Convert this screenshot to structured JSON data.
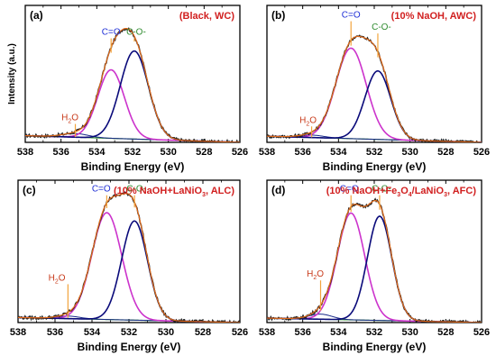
{
  "colors": {
    "raw_data": "#222222",
    "envelope": "#e06a1a",
    "co_peak": "#0a0a7a",
    "c_double_o_peak": "#cc33cc",
    "h2o_peak": "#1a2a8a",
    "baseline": "#2e8b2e",
    "c_double_o_label": "#1f2fd6",
    "co_label": "#2e8b2e",
    "h2o_label": "#c83a1a",
    "marker_line": "#f2a43c",
    "sample_label": "#d11f1f"
  },
  "chart_data": [
    {
      "type": "line",
      "panel_label": "(a)",
      "sample_label": "(Black, WC)",
      "xlabel": "Binding Energy (eV)",
      "ylabel": "Intensity (a.u.)",
      "xlim": [
        538,
        526
      ],
      "ylim": [
        0,
        1.12
      ],
      "x_ticks": [
        538,
        536,
        534,
        532,
        530,
        528,
        526
      ],
      "x_tick_labels": [
        "538",
        "536",
        "534",
        "532",
        "530",
        "528",
        "526"
      ],
      "baseline": {
        "x": [
          538,
          526
        ],
        "y": [
          0.055,
          0.0
        ]
      },
      "peaks": [
        {
          "name": "H2O",
          "center": 535.2,
          "height": 0.03,
          "width": 1.7
        },
        {
          "name": "C=O",
          "center": 533.2,
          "height": 0.56,
          "width": 1.75
        },
        {
          "name": "C-O-",
          "center": 531.9,
          "height": 0.72,
          "width": 1.85
        }
      ],
      "annotations": [
        {
          "text": "C=O",
          "x": 533.2,
          "y": 0.88
        },
        {
          "text": "C-O-",
          "x": 531.8,
          "y": 0.88
        },
        {
          "text": "H",
          "sub": "2",
          "after": "O",
          "x": 535.5,
          "y": 0.18
        }
      ]
    },
    {
      "type": "line",
      "panel_label": "(b)",
      "sample_label": "(10% NaOH, AWC)",
      "xlabel": "Binding Energy (eV)",
      "ylabel": "",
      "xlim": [
        538,
        526
      ],
      "ylim": [
        0,
        1.12
      ],
      "x_ticks": [
        538,
        536,
        534,
        532,
        530,
        528,
        526
      ],
      "x_tick_labels": [
        "538",
        "536",
        "534",
        "532",
        "530",
        "528",
        "526"
      ],
      "baseline": {
        "x": [
          538,
          526
        ],
        "y": [
          0.05,
          0.0
        ]
      },
      "peaks": [
        {
          "name": "H2O",
          "center": 535.5,
          "height": 0.02,
          "width": 1.6
        },
        {
          "name": "C=O",
          "center": 533.3,
          "height": 0.74,
          "width": 2.0
        },
        {
          "name": "C-O-",
          "center": 531.8,
          "height": 0.56,
          "width": 1.7
        }
      ],
      "annotations": [
        {
          "text": "C=O",
          "x": 533.3,
          "y": 1.02
        },
        {
          "text": "C-O-",
          "x": 531.6,
          "y": 0.92
        },
        {
          "text": "H",
          "sub": "2",
          "after": "O",
          "x": 535.7,
          "y": 0.16
        }
      ]
    },
    {
      "type": "line",
      "panel_label": "(c)",
      "sample_label": "(10% NaOH+LaNiO",
      "sample_label_sub": "3",
      "sample_label_tail": ", ALC)",
      "xlabel": "Binding Energy (eV)",
      "ylabel": "",
      "xlim": [
        538,
        526
      ],
      "ylim": [
        0,
        1.12
      ],
      "x_ticks": [
        538,
        536,
        534,
        532,
        530,
        528,
        526
      ],
      "x_tick_labels": [
        "538",
        "536",
        "534",
        "532",
        "530",
        "528",
        "526"
      ],
      "baseline": {
        "x": [
          538,
          526
        ],
        "y": [
          0.04,
          0.0
        ]
      },
      "peaks": [
        {
          "name": "H2O",
          "center": 535.3,
          "height": 0.02,
          "width": 1.5
        },
        {
          "name": "C=O",
          "center": 533.2,
          "height": 0.84,
          "width": 1.9
        },
        {
          "name": "C-O-",
          "center": 531.7,
          "height": 0.78,
          "width": 1.65
        }
      ],
      "annotations": [
        {
          "text": "C=O",
          "x": 533.5,
          "y": 1.03
        },
        {
          "text": "C-O-",
          "x": 531.6,
          "y": 1.03
        },
        {
          "text": "H",
          "sub": "2",
          "after": "O",
          "x": 535.9,
          "y": 0.33
        }
      ]
    },
    {
      "type": "line",
      "panel_label": "(d)",
      "sample_label": "(10% NaOH+Fe",
      "sample_label_sub": "3",
      "sample_label_mid": "O",
      "sample_label_sub2": "4",
      "sample_label_tail": "/LaNiO",
      "sample_label_sub3": "3",
      "sample_label_end": ", AFC)",
      "xlabel": "Binding Energy (eV)",
      "ylabel": "",
      "xlim": [
        538,
        526
      ],
      "ylim": [
        0,
        1.12
      ],
      "x_ticks": [
        538,
        536,
        534,
        532,
        530,
        528,
        526
      ],
      "x_tick_labels": [
        "538",
        "536",
        "534",
        "532",
        "530",
        "528",
        "526"
      ],
      "baseline": {
        "x": [
          538,
          526
        ],
        "y": [
          0.035,
          0.0
        ]
      },
      "peaks": [
        {
          "name": "H2O",
          "center": 535.0,
          "height": 0.04,
          "width": 1.5
        },
        {
          "name": "C=O",
          "center": 533.3,
          "height": 0.84,
          "width": 1.8
        },
        {
          "name": "C-O-",
          "center": 531.7,
          "height": 0.82,
          "width": 1.6
        }
      ],
      "annotations": [
        {
          "text": "C=O",
          "x": 533.4,
          "y": 1.03
        },
        {
          "text": "C-O-",
          "x": 531.6,
          "y": 1.03
        },
        {
          "text": "H",
          "sub": "2",
          "after": "O",
          "x": 535.3,
          "y": 0.36
        }
      ]
    }
  ]
}
